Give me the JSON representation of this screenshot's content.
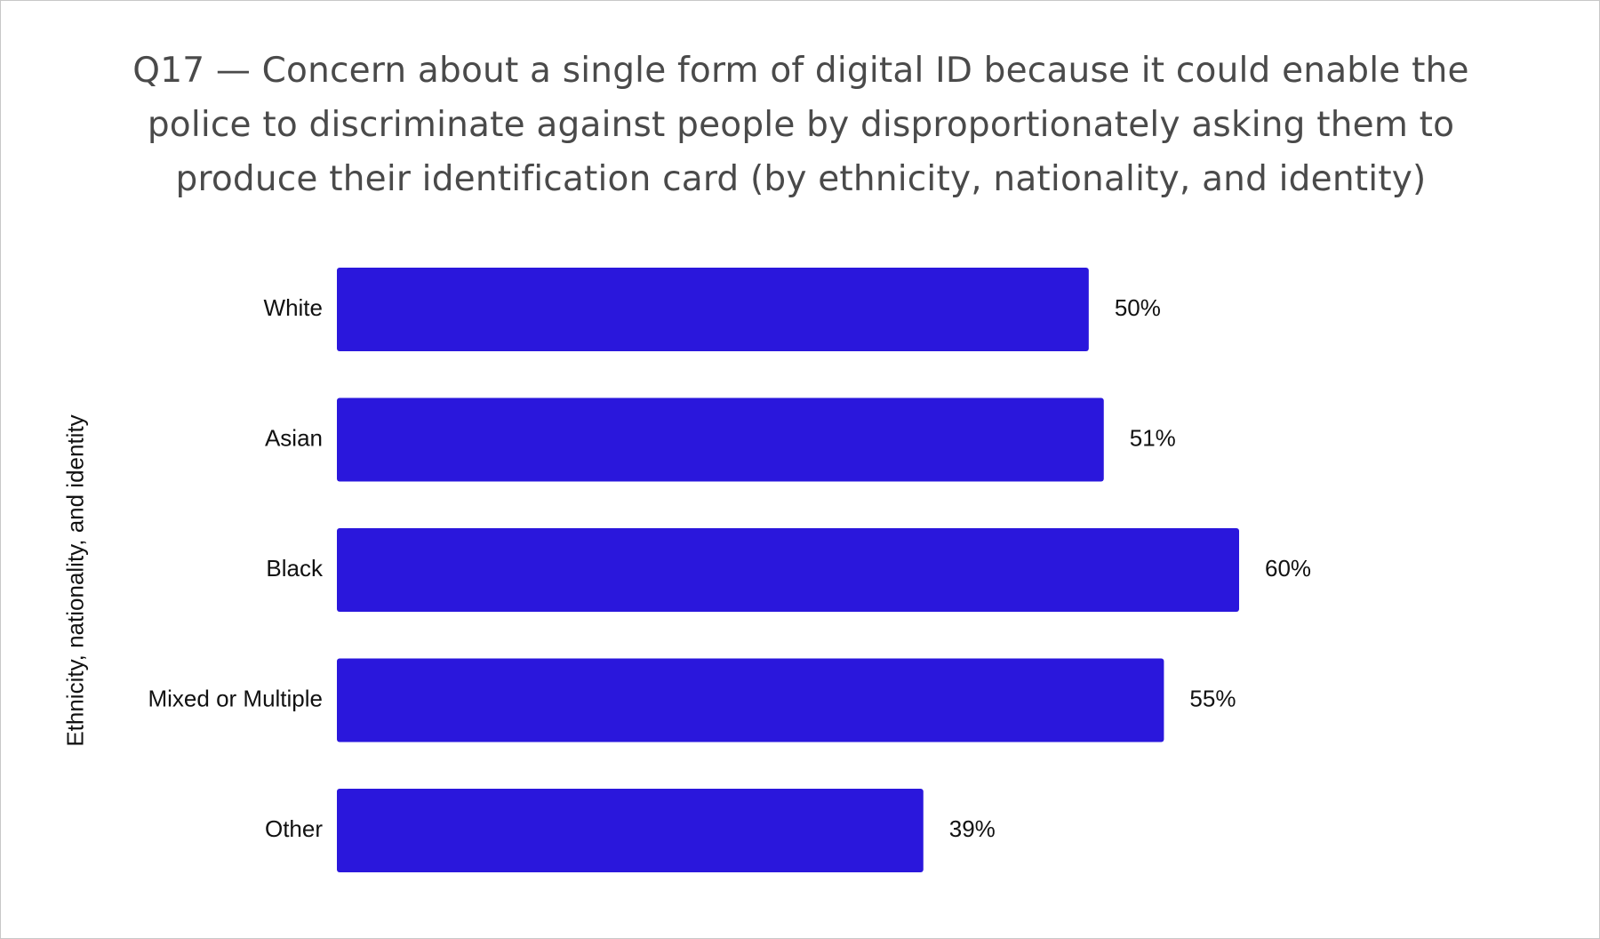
{
  "chart_data": {
    "type": "bar",
    "orientation": "horizontal",
    "title": "Q17 — Concern about a single form of digital ID because it could enable the police to discriminate against people by disproportionately asking them to produce their identification card (by ethnicity, nationality, and identity)",
    "title_lines": [
      "Q17 — Concern about a single form of digital ID because it could enable the",
      "police to discriminate against people by disproportionately asking them to",
      "produce their identification card (by ethnicity, nationality, and identity)"
    ],
    "xlabel": "",
    "ylabel": "Ethnicity, nationality, and identity",
    "categories": [
      "White",
      "Asian",
      "Black",
      "Mixed or Multiple",
      "Other"
    ],
    "values": [
      50,
      51,
      60,
      55,
      39
    ],
    "value_labels": [
      "50%",
      "51%",
      "60%",
      "55%",
      "39%"
    ],
    "unit": "%",
    "xlim": [
      0,
      60
    ],
    "grid": false,
    "legend": "none",
    "bar_color": "#2a17dc"
  }
}
